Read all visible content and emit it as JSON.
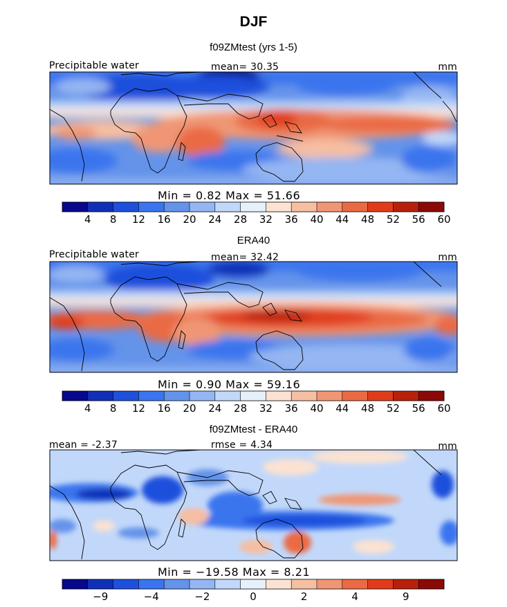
{
  "title": "DJF",
  "chart_data": [
    {
      "type": "heatmap",
      "title": "f09ZMtest (yrs 1-5)",
      "field_label": "Precipitable water",
      "stat_text": "mean=  30.35",
      "units": "mm",
      "min_max_text": "Min =    0.82  Max =   51.66",
      "colorbar": {
        "ticks": [
          "4",
          "8",
          "12",
          "16",
          "20",
          "24",
          "28",
          "32",
          "36",
          "40",
          "44",
          "48",
          "52",
          "56",
          "60"
        ],
        "colors": [
          "#08088c",
          "#1030b8",
          "#1e50dc",
          "#3a74ee",
          "#6493ea",
          "#94b6f2",
          "#c2d8fa",
          "#e6f0fb",
          "#fbe2d2",
          "#f6bea2",
          "#f09674",
          "#ea6a44",
          "#e03c1a",
          "#b8200c",
          "#8a0a06"
        ]
      }
    },
    {
      "type": "heatmap",
      "title": "ERA40",
      "field_label": "Precipitable water",
      "stat_text": "mean=  32.42",
      "units": "mm",
      "min_max_text": "Min =    0.90  Max =   59.16",
      "colorbar": {
        "ticks": [
          "4",
          "8",
          "12",
          "16",
          "20",
          "24",
          "28",
          "32",
          "36",
          "40",
          "44",
          "48",
          "52",
          "56",
          "60"
        ],
        "colors": [
          "#08088c",
          "#1030b8",
          "#1e50dc",
          "#3a74ee",
          "#6493ea",
          "#94b6f2",
          "#c2d8fa",
          "#e6f0fb",
          "#fbe2d2",
          "#f6bea2",
          "#f09674",
          "#ea6a44",
          "#e03c1a",
          "#b8200c",
          "#8a0a06"
        ]
      }
    },
    {
      "type": "heatmap",
      "title": "f09ZMtest - ERA40",
      "field_label": "mean =  -2.37",
      "stat_text": "rmse =   4.34",
      "units": "mm",
      "min_max_text": "Min = −19.58  Max =    8.21",
      "colorbar": {
        "ticks": [
          "−9",
          "−4",
          "−2",
          "0",
          "2",
          "4",
          "9"
        ],
        "colors": [
          "#08088c",
          "#1030b8",
          "#1e50dc",
          "#3a74ee",
          "#6493ea",
          "#94b6f2",
          "#c2d8fa",
          "#e6f0fb",
          "#fbe2d2",
          "#f6bea2",
          "#f09674",
          "#ea6a44",
          "#e03c1a",
          "#b8200c",
          "#8a0a06"
        ]
      }
    }
  ]
}
